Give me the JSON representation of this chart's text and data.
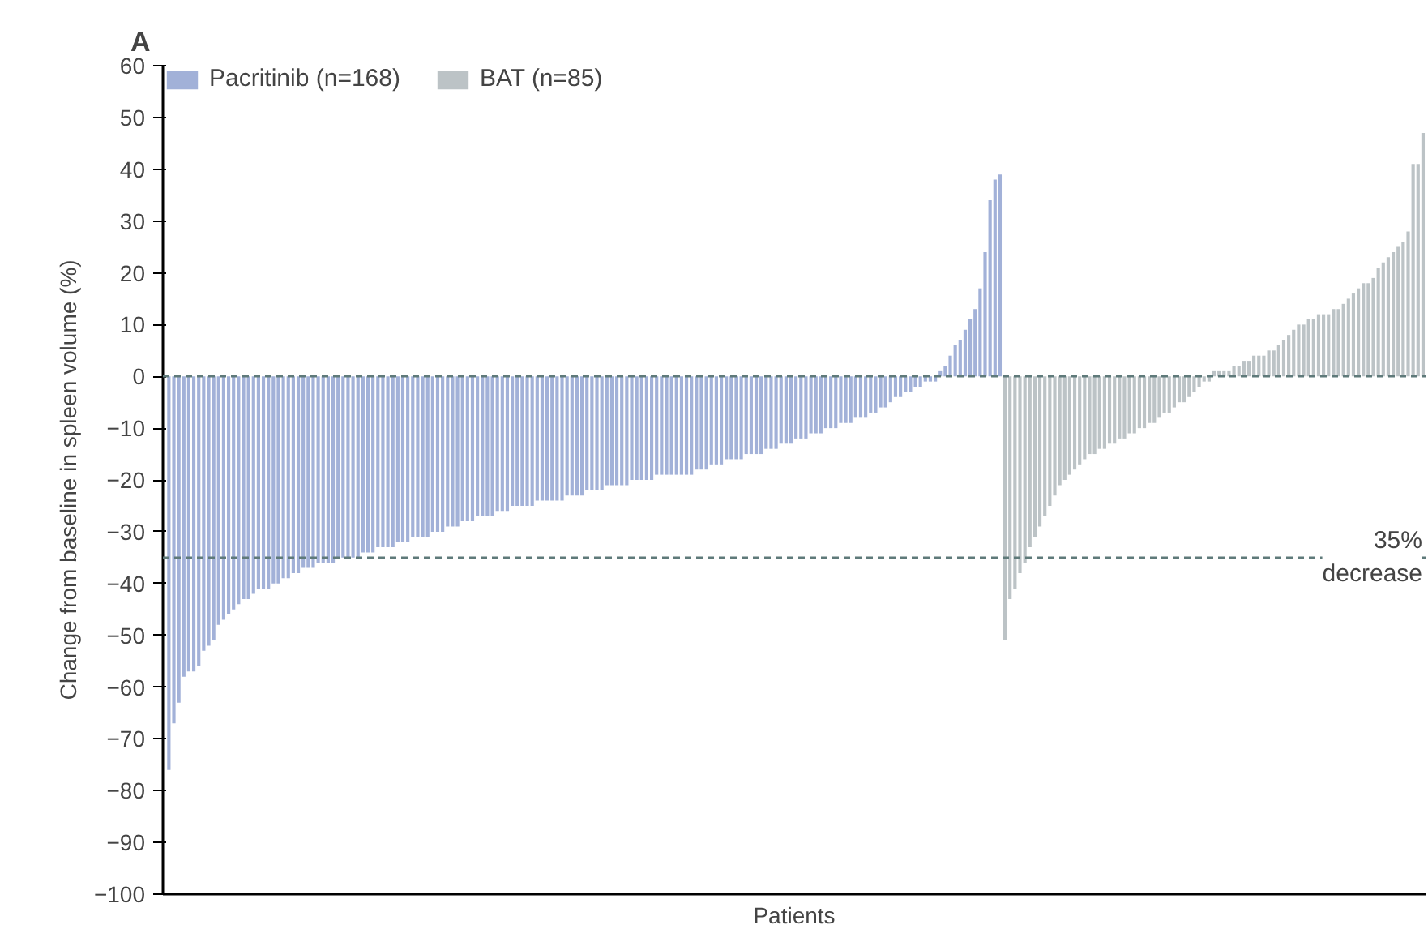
{
  "chart_data": {
    "type": "bar",
    "title": "A",
    "xlabel": "Patients",
    "ylabel": "Change from baseline in spleen volume (%)",
    "categories": [
      null,
      null,
      null,
      null,
      null,
      null,
      null,
      null,
      null,
      null,
      null,
      null,
      null,
      null,
      null,
      null,
      null,
      null,
      null,
      null,
      null,
      null,
      null,
      null,
      null,
      null,
      null,
      null,
      null,
      null,
      null,
      null,
      null,
      null,
      null,
      null,
      null,
      null,
      null,
      null,
      null,
      null,
      null,
      null,
      null,
      null,
      null,
      null,
      null,
      null,
      null,
      null,
      null,
      null,
      null,
      null,
      null,
      null,
      null,
      null,
      null,
      null,
      null,
      null,
      null,
      null,
      null,
      null,
      null,
      null,
      null,
      null,
      null,
      null,
      null,
      null,
      null,
      null,
      null,
      null,
      null,
      null,
      null,
      null,
      null,
      null,
      null,
      null,
      null,
      null,
      null,
      null,
      null,
      null,
      null,
      null,
      null,
      null,
      null,
      null,
      null,
      null,
      null,
      null,
      null,
      null,
      null,
      null,
      null,
      null,
      null,
      null,
      null,
      null,
      null,
      null,
      null,
      null,
      null,
      null,
      null,
      null,
      null,
      null,
      null,
      null,
      null,
      null,
      null,
      null,
      null,
      null,
      null,
      null,
      null,
      null,
      null,
      null,
      null,
      null,
      null,
      null,
      null,
      null,
      null,
      null,
      null,
      null,
      null,
      null,
      null,
      null,
      null,
      null,
      null,
      null,
      null,
      null,
      null,
      null,
      null,
      null,
      null,
      null,
      null,
      null,
      null,
      null,
      null,
      null,
      null,
      null,
      null,
      null,
      null,
      null,
      null,
      null,
      null,
      null,
      null,
      null,
      null,
      null,
      null,
      null,
      null,
      null,
      null,
      null,
      null,
      null,
      null,
      null,
      null,
      null,
      null,
      null,
      null,
      null,
      null,
      null,
      null,
      null,
      null,
      null,
      null,
      null,
      null,
      null,
      null,
      null,
      null,
      null,
      null,
      null,
      null,
      null,
      null,
      null,
      null,
      null,
      null,
      null,
      null,
      null,
      null,
      null,
      null,
      null,
      null,
      null,
      null,
      null,
      null,
      null,
      null,
      null,
      null,
      null,
      null,
      null,
      null,
      null,
      null,
      null,
      null,
      null,
      null,
      null,
      null,
      null,
      null
    ],
    "series": [
      {
        "name": "Pacritinib (n=168)",
        "color": "#a2b1d8",
        "values": [
          -76,
          -67,
          -63,
          -58,
          -57,
          -57,
          -56,
          -53,
          -52,
          -51,
          -48,
          -47,
          -46,
          -45,
          -44,
          -43,
          -43,
          -42,
          -41,
          -41,
          -41,
          -40,
          -40,
          -39,
          -39,
          -38,
          -38,
          -37,
          -37,
          -37,
          -36,
          -36,
          -36,
          -36,
          -35,
          -35,
          -35,
          -35,
          -35,
          -34,
          -34,
          -34,
          -33,
          -33,
          -33,
          -33,
          -32,
          -32,
          -32,
          -31,
          -31,
          -31,
          -31,
          -30,
          -30,
          -30,
          -29,
          -29,
          -29,
          -28,
          -28,
          -28,
          -27,
          -27,
          -27,
          -27,
          -26,
          -26,
          -26,
          -25,
          -25,
          -25,
          -25,
          -25,
          -24,
          -24,
          -24,
          -24,
          -24,
          -24,
          -23,
          -23,
          -23,
          -23,
          -22,
          -22,
          -22,
          -22,
          -21,
          -21,
          -21,
          -21,
          -21,
          -20,
          -20,
          -20,
          -20,
          -20,
          -19,
          -19,
          -19,
          -19,
          -19,
          -19,
          -19,
          -19,
          -18,
          -18,
          -18,
          -17,
          -17,
          -17,
          -16,
          -16,
          -16,
          -16,
          -15,
          -15,
          -15,
          -15,
          -14,
          -14,
          -14,
          -13,
          -13,
          -13,
          -12,
          -12,
          -12,
          -11,
          -11,
          -11,
          -10,
          -10,
          -10,
          -9,
          -9,
          -9,
          -8,
          -8,
          -8,
          -7,
          -7,
          -6,
          -6,
          -5,
          -4,
          -4,
          -3,
          -3,
          -2,
          -2,
          -1,
          -1,
          -1,
          1,
          2,
          4,
          6,
          7,
          9,
          11,
          13,
          17,
          24,
          34,
          38,
          39,
          null,
          null,
          null,
          null,
          null,
          null,
          null,
          null,
          null,
          null,
          null,
          null,
          null,
          null,
          null,
          null,
          null,
          null,
          null,
          null,
          null,
          null,
          null,
          null,
          null,
          null,
          null,
          null,
          null,
          null,
          null,
          null,
          null,
          null,
          null,
          null,
          null,
          null,
          null,
          null,
          null,
          null,
          null,
          null,
          null,
          null,
          null,
          null,
          null,
          null,
          null,
          null,
          null,
          null,
          null,
          null,
          null,
          null,
          null,
          null,
          null,
          null,
          null,
          null,
          null,
          null,
          null,
          null,
          null,
          null,
          null,
          null,
          null,
          null,
          null,
          null,
          null,
          null,
          null,
          null,
          null,
          null,
          null,
          null,
          null
        ]
      },
      {
        "name": "BAT (n=85)",
        "color": "#bcc3c6",
        "values": [
          null,
          null,
          null,
          null,
          null,
          null,
          null,
          null,
          null,
          null,
          null,
          null,
          null,
          null,
          null,
          null,
          null,
          null,
          null,
          null,
          null,
          null,
          null,
          null,
          null,
          null,
          null,
          null,
          null,
          null,
          null,
          null,
          null,
          null,
          null,
          null,
          null,
          null,
          null,
          null,
          null,
          null,
          null,
          null,
          null,
          null,
          null,
          null,
          null,
          null,
          null,
          null,
          null,
          null,
          null,
          null,
          null,
          null,
          null,
          null,
          null,
          null,
          null,
          null,
          null,
          null,
          null,
          null,
          null,
          null,
          null,
          null,
          null,
          null,
          null,
          null,
          null,
          null,
          null,
          null,
          null,
          null,
          null,
          null,
          null,
          null,
          null,
          null,
          null,
          null,
          null,
          null,
          null,
          null,
          null,
          null,
          null,
          null,
          null,
          null,
          null,
          null,
          null,
          null,
          null,
          null,
          null,
          null,
          null,
          null,
          null,
          null,
          null,
          null,
          null,
          null,
          null,
          null,
          null,
          null,
          null,
          null,
          null,
          null,
          null,
          null,
          null,
          null,
          null,
          null,
          null,
          null,
          null,
          null,
          null,
          null,
          null,
          null,
          null,
          null,
          null,
          null,
          null,
          null,
          null,
          null,
          null,
          null,
          null,
          null,
          null,
          null,
          null,
          null,
          null,
          null,
          null,
          null,
          null,
          null,
          null,
          null,
          null,
          null,
          null,
          null,
          null,
          null,
          -51,
          -43,
          -41,
          -38,
          -36,
          -33,
          -31,
          -29,
          -27,
          -25,
          -23,
          -21,
          -20,
          -19,
          -18,
          -17,
          -16,
          -15,
          -15,
          -14,
          -14,
          -13,
          -13,
          -12,
          -12,
          -11,
          -11,
          -10,
          -10,
          -9,
          -9,
          -8,
          -7,
          -7,
          -6,
          -5,
          -5,
          -4,
          -3,
          -2,
          -1,
          -1,
          1,
          1,
          1,
          1,
          2,
          2,
          3,
          3,
          4,
          4,
          4,
          5,
          5,
          6,
          7,
          8,
          9,
          10,
          10,
          11,
          11,
          12,
          12,
          12,
          13,
          13,
          14,
          15,
          16,
          17,
          18,
          18,
          19,
          21,
          22,
          23,
          24,
          25,
          26,
          28,
          41,
          41,
          47
        ]
      }
    ],
    "ylim": [
      -100,
      60
    ],
    "yticks": [
      -100,
      -90,
      -80,
      -70,
      -60,
      -50,
      -40,
      -30,
      -20,
      -10,
      0,
      10,
      20,
      30,
      40,
      50,
      60
    ],
    "ref_lines": [
      {
        "axis": "y",
        "value": 0,
        "label": null,
        "color": "#5f7a7a",
        "line_style": "dashed"
      },
      {
        "axis": "y",
        "value": -35,
        "label": "35% decrease",
        "color": "#5f7a7a",
        "line_style": "dashed"
      }
    ],
    "legend": "top left",
    "grid": false,
    "tick_labels": "y"
  }
}
